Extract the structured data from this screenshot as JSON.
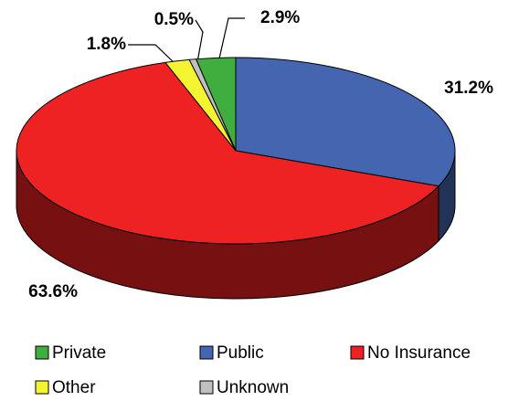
{
  "chart_data": {
    "type": "pie3d",
    "categories": [
      "Private",
      "Public",
      "No Insurance",
      "Other",
      "Unknown"
    ],
    "values": [
      2.9,
      31.2,
      63.6,
      1.8,
      0.5
    ],
    "value_labels": [
      "2.9%",
      "31.2%",
      "63.6%",
      "1.8%",
      "0.5%"
    ],
    "colors": [
      "#3fae3f",
      "#4466b0",
      "#ee2222",
      "#f4f431",
      "#c0c0c0"
    ],
    "legend": "bottom"
  }
}
